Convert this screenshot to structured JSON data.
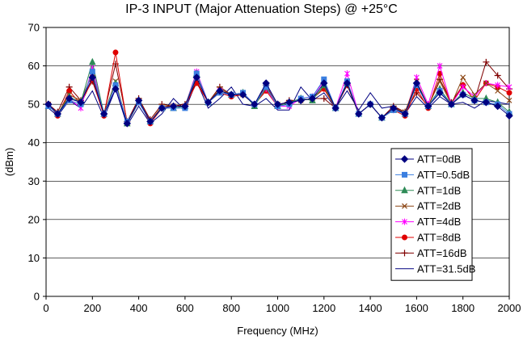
{
  "chart_data": {
    "type": "line",
    "title": "IP-3 INPUT (Major Attenuation Steps) @ +25°C",
    "xlabel": "Frequency (MHz)",
    "ylabel": "(dBm)",
    "xlim": [
      0,
      2000
    ],
    "ylim": [
      0,
      70
    ],
    "xticks": [
      0,
      200,
      400,
      600,
      800,
      1000,
      1200,
      1400,
      1600,
      1800,
      2000
    ],
    "yticks": [
      0,
      10,
      20,
      30,
      40,
      50,
      60,
      70
    ],
    "grid": "horizontal",
    "legend_position": "right",
    "x": [
      10,
      50,
      100,
      150,
      200,
      250,
      300,
      350,
      400,
      450,
      500,
      550,
      600,
      650,
      700,
      750,
      800,
      850,
      900,
      950,
      1000,
      1050,
      1100,
      1150,
      1200,
      1250,
      1300,
      1350,
      1400,
      1450,
      1500,
      1550,
      1600,
      1650,
      1700,
      1750,
      1800,
      1850,
      1900,
      1950,
      2000
    ],
    "series": [
      {
        "name": "ATT=0dB",
        "color": "#000080",
        "marker": "diamond",
        "values": [
          50,
          47.5,
          51.5,
          50.5,
          57,
          47.5,
          54,
          45,
          51,
          45.5,
          49,
          49.5,
          49.5,
          57,
          50.5,
          53.5,
          52.5,
          52.5,
          50,
          55.5,
          50,
          50.5,
          51,
          51.5,
          55.5,
          49,
          55.5,
          47.5,
          50,
          46.5,
          49,
          47.5,
          55.5,
          49.5,
          53,
          50,
          52.5,
          51,
          50.5,
          49.5,
          47
        ]
      },
      {
        "name": "ATT=0.5dB",
        "color": "#3b7fe0",
        "marker": "square",
        "values": [
          49.5,
          47.5,
          51,
          50,
          58.5,
          47.5,
          55,
          45.5,
          50.5,
          45.5,
          49,
          49,
          49,
          58,
          50.5,
          53,
          52.5,
          53,
          50,
          54.5,
          49.5,
          50,
          51.5,
          52,
          56.5,
          49,
          56,
          47.5,
          50,
          46.5,
          48.5,
          47.5,
          55,
          49.5,
          53.5,
          50,
          52.5,
          51,
          50.5,
          50,
          47.5
        ]
      },
      {
        "name": "ATT=1dB",
        "color": "#2e8b57",
        "marker": "triangle",
        "values": [
          49.5,
          47.5,
          52,
          50.5,
          61,
          47.5,
          55.5,
          45,
          50.5,
          45.5,
          49,
          49,
          49.5,
          58,
          50.5,
          53.5,
          52.5,
          53,
          49.5,
          54.5,
          49.5,
          50.5,
          51.5,
          51,
          55,
          49,
          55.5,
          47.5,
          50,
          46.5,
          48.5,
          47.5,
          55,
          49.5,
          54,
          50,
          53,
          51.5,
          51.5,
          50.5,
          48
        ]
      },
      {
        "name": "ATT=2dB",
        "color": "#8b4513",
        "marker": "x",
        "values": [
          50,
          47.5,
          52.5,
          51,
          58,
          47.5,
          56,
          45,
          51,
          45.5,
          49.5,
          49.5,
          49.5,
          57,
          50.5,
          54,
          52.5,
          52.5,
          50,
          54,
          50,
          50.5,
          51,
          51.5,
          54.5,
          49,
          56,
          47.5,
          50,
          46.5,
          49,
          48,
          56,
          49.5,
          56,
          50,
          57,
          52.5,
          55.5,
          53.5,
          51
        ]
      },
      {
        "name": "ATT=4dB",
        "color": "#ff00ff",
        "marker": "star",
        "values": [
          50,
          47.5,
          51.5,
          49,
          59.5,
          47.5,
          55,
          45,
          50.5,
          45.5,
          49,
          49.5,
          49.5,
          58.5,
          50.5,
          53.5,
          52.5,
          53,
          50,
          54,
          49.5,
          49.5,
          51.5,
          52,
          56,
          49,
          58,
          47.5,
          50,
          46.5,
          48.5,
          47.5,
          57,
          50,
          60,
          50,
          54.5,
          52,
          55.5,
          55,
          54.5
        ]
      },
      {
        "name": "ATT=8dB",
        "color": "#e00000",
        "marker": "circle",
        "values": [
          50,
          47,
          53.5,
          50,
          56.5,
          47,
          63.5,
          45,
          51,
          45,
          49,
          49,
          49.5,
          55.5,
          50.5,
          53,
          52,
          52.5,
          50,
          53.5,
          49.5,
          50.5,
          51,
          51.5,
          54,
          49,
          55.5,
          47.5,
          50,
          46.5,
          48.5,
          47,
          54,
          49,
          58,
          50,
          55,
          51,
          55.5,
          54.5,
          53
        ]
      },
      {
        "name": "ATT=16dB",
        "color": "#800000",
        "marker": "plus",
        "values": [
          50,
          48,
          54.5,
          51,
          56,
          47.5,
          60.5,
          45.5,
          51.5,
          46,
          50,
          49.5,
          50,
          56,
          50.5,
          54.5,
          52.5,
          52.5,
          50,
          55,
          49.5,
          51,
          51,
          51.5,
          51.5,
          49,
          55,
          47.5,
          50,
          46.5,
          49.5,
          48,
          53,
          49.5,
          56.5,
          50.5,
          55,
          51,
          61,
          57.5,
          54
        ]
      },
      {
        "name": "ATT=31.5dB",
        "color": "#000080",
        "marker": "none",
        "values": [
          49,
          47,
          51,
          49,
          53.5,
          46.5,
          54,
          44.5,
          49.5,
          45,
          47.5,
          51.5,
          48.5,
          56,
          49,
          51.5,
          54.5,
          50,
          49.5,
          51.5,
          48.5,
          48.5,
          54.5,
          51,
          53,
          49,
          53.5,
          48.5,
          53,
          49,
          49.5,
          47.5,
          52,
          49,
          52,
          50,
          50.5,
          49,
          51,
          50.5,
          50
        ]
      }
    ]
  }
}
